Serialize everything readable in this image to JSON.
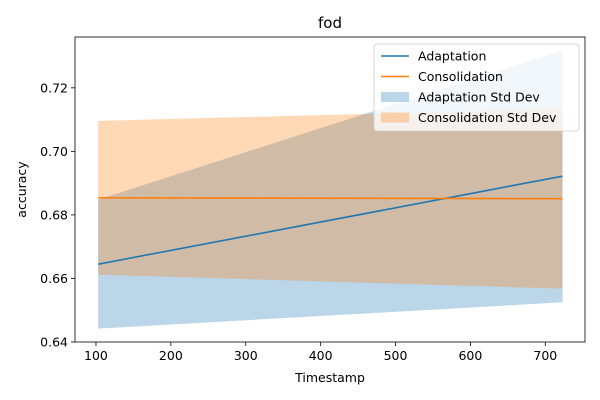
{
  "chart_data": {
    "type": "line",
    "title": "fod",
    "xlabel": "Timestamp",
    "ylabel": "accuracy",
    "xlim": [
      72,
      753
    ],
    "ylim": [
      0.64,
      0.736
    ],
    "xticks": [
      100,
      200,
      300,
      400,
      500,
      600,
      700
    ],
    "yticks": [
      0.64,
      0.66,
      0.68,
      0.7,
      0.72
    ],
    "ytick_labels": [
      "0.64",
      "0.66",
      "0.68",
      "0.70",
      "0.72"
    ],
    "legend_position": "top-right",
    "series": [
      {
        "name": "Adaptation",
        "color": "#1f77b4",
        "x": [
          103,
          723
        ],
        "y": [
          0.6645,
          0.6922
        ],
        "lower": [
          0.6442,
          0.6525
        ],
        "upper": [
          0.6848,
          0.7318
        ]
      },
      {
        "name": "Consolidation",
        "color": "#ff7f0e",
        "x": [
          103,
          723
        ],
        "y": [
          0.6854,
          0.6851
        ],
        "lower": [
          0.6612,
          0.6568
        ],
        "upper": [
          0.7096,
          0.7134
        ]
      }
    ],
    "bands": [
      {
        "name": "Adaptation Std Dev",
        "color": "#1f77b4",
        "alpha": 0.3
      },
      {
        "name": "Consolidation Std Dev",
        "color": "#ff7f0e",
        "alpha": 0.3
      }
    ]
  }
}
